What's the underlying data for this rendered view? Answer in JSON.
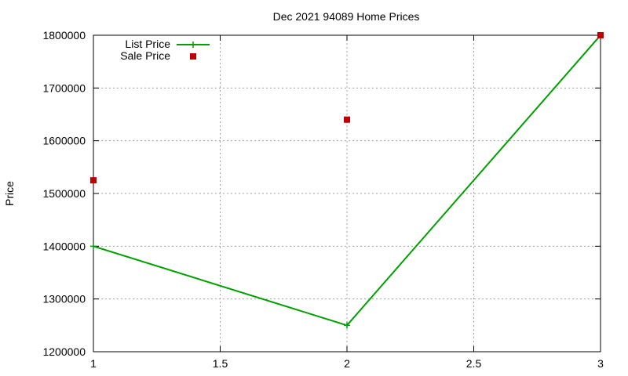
{
  "chart_data": {
    "type": "line",
    "title": "Dec 2021 94089 Home Prices",
    "xlabel": "",
    "ylabel": "Price",
    "xlim": [
      1,
      3
    ],
    "ylim": [
      1200000,
      1800000
    ],
    "x_ticks": [
      "1",
      "1.5",
      "2",
      "2.5",
      "3"
    ],
    "y_ticks": [
      "1200000",
      "1300000",
      "1400000",
      "1500000",
      "1600000",
      "1700000",
      "1800000"
    ],
    "grid": true,
    "legend_position": "top-left",
    "series": [
      {
        "name": "List Price",
        "style": "linespoints",
        "marker": "plus",
        "color": "#00a000",
        "x": [
          1,
          2,
          3
        ],
        "y": [
          1400000,
          1250000,
          1800000
        ]
      },
      {
        "name": "Sale Price",
        "style": "points",
        "marker": "square",
        "color": "#c00000",
        "x": [
          1,
          2,
          3
        ],
        "y": [
          1525000,
          1640000,
          1800000
        ]
      }
    ]
  }
}
